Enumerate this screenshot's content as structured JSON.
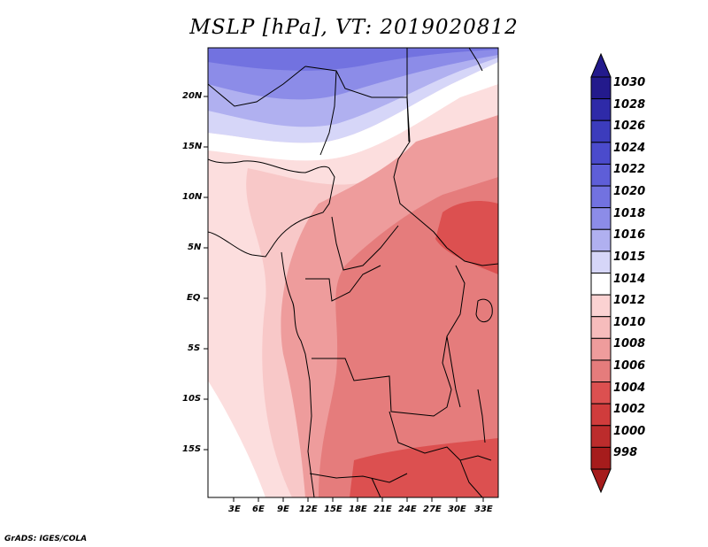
{
  "title": "MSLP [hPa], VT: 2019020812",
  "credit": "GrADS: IGES/COLA",
  "map": {
    "lat_labels": [
      "20N",
      "15N",
      "10N",
      "5N",
      "EQ",
      "5S",
      "10S",
      "15S"
    ],
    "lon_labels": [
      "3E",
      "6E",
      "9E",
      "12E",
      "15E",
      "18E",
      "21E",
      "24E",
      "27E",
      "30E",
      "33E"
    ]
  },
  "colorbar": {
    "labels": [
      "1030",
      "1028",
      "1026",
      "1024",
      "1022",
      "1020",
      "1018",
      "1016",
      "1015",
      "1014",
      "1012",
      "1010",
      "1008",
      "1006",
      "1004",
      "1002",
      "1000",
      "998"
    ],
    "colors": [
      "#231a8c",
      "#2e2aa8",
      "#3c3cbc",
      "#4b4bcc",
      "#5e5ed8",
      "#7272e0",
      "#8c8ce8",
      "#b0b0f0",
      "#d6d6f8",
      "#ffffff",
      "#fbd2d2",
      "#f6bcbc",
      "#ee9c9c",
      "#e57c7c",
      "#dc5050",
      "#d03c3c",
      "#bc2c2c",
      "#a61c1c"
    ],
    "top_arrow_color": "#231a8c",
    "bottom_arrow_color": "#a61c1c"
  },
  "field_colors": {
    "blue_deep": "#7272e0",
    "blue_mid": "#8c8ce8",
    "blue_light": "#b0b0f0",
    "blue_pale": "#d6d6f8",
    "white": "#ffffff",
    "pink_pale": "#fcdede",
    "pink": "#f8c8c8",
    "salmon": "#ee9c9c",
    "red_light": "#e57c7c",
    "red": "#dc5050"
  }
}
